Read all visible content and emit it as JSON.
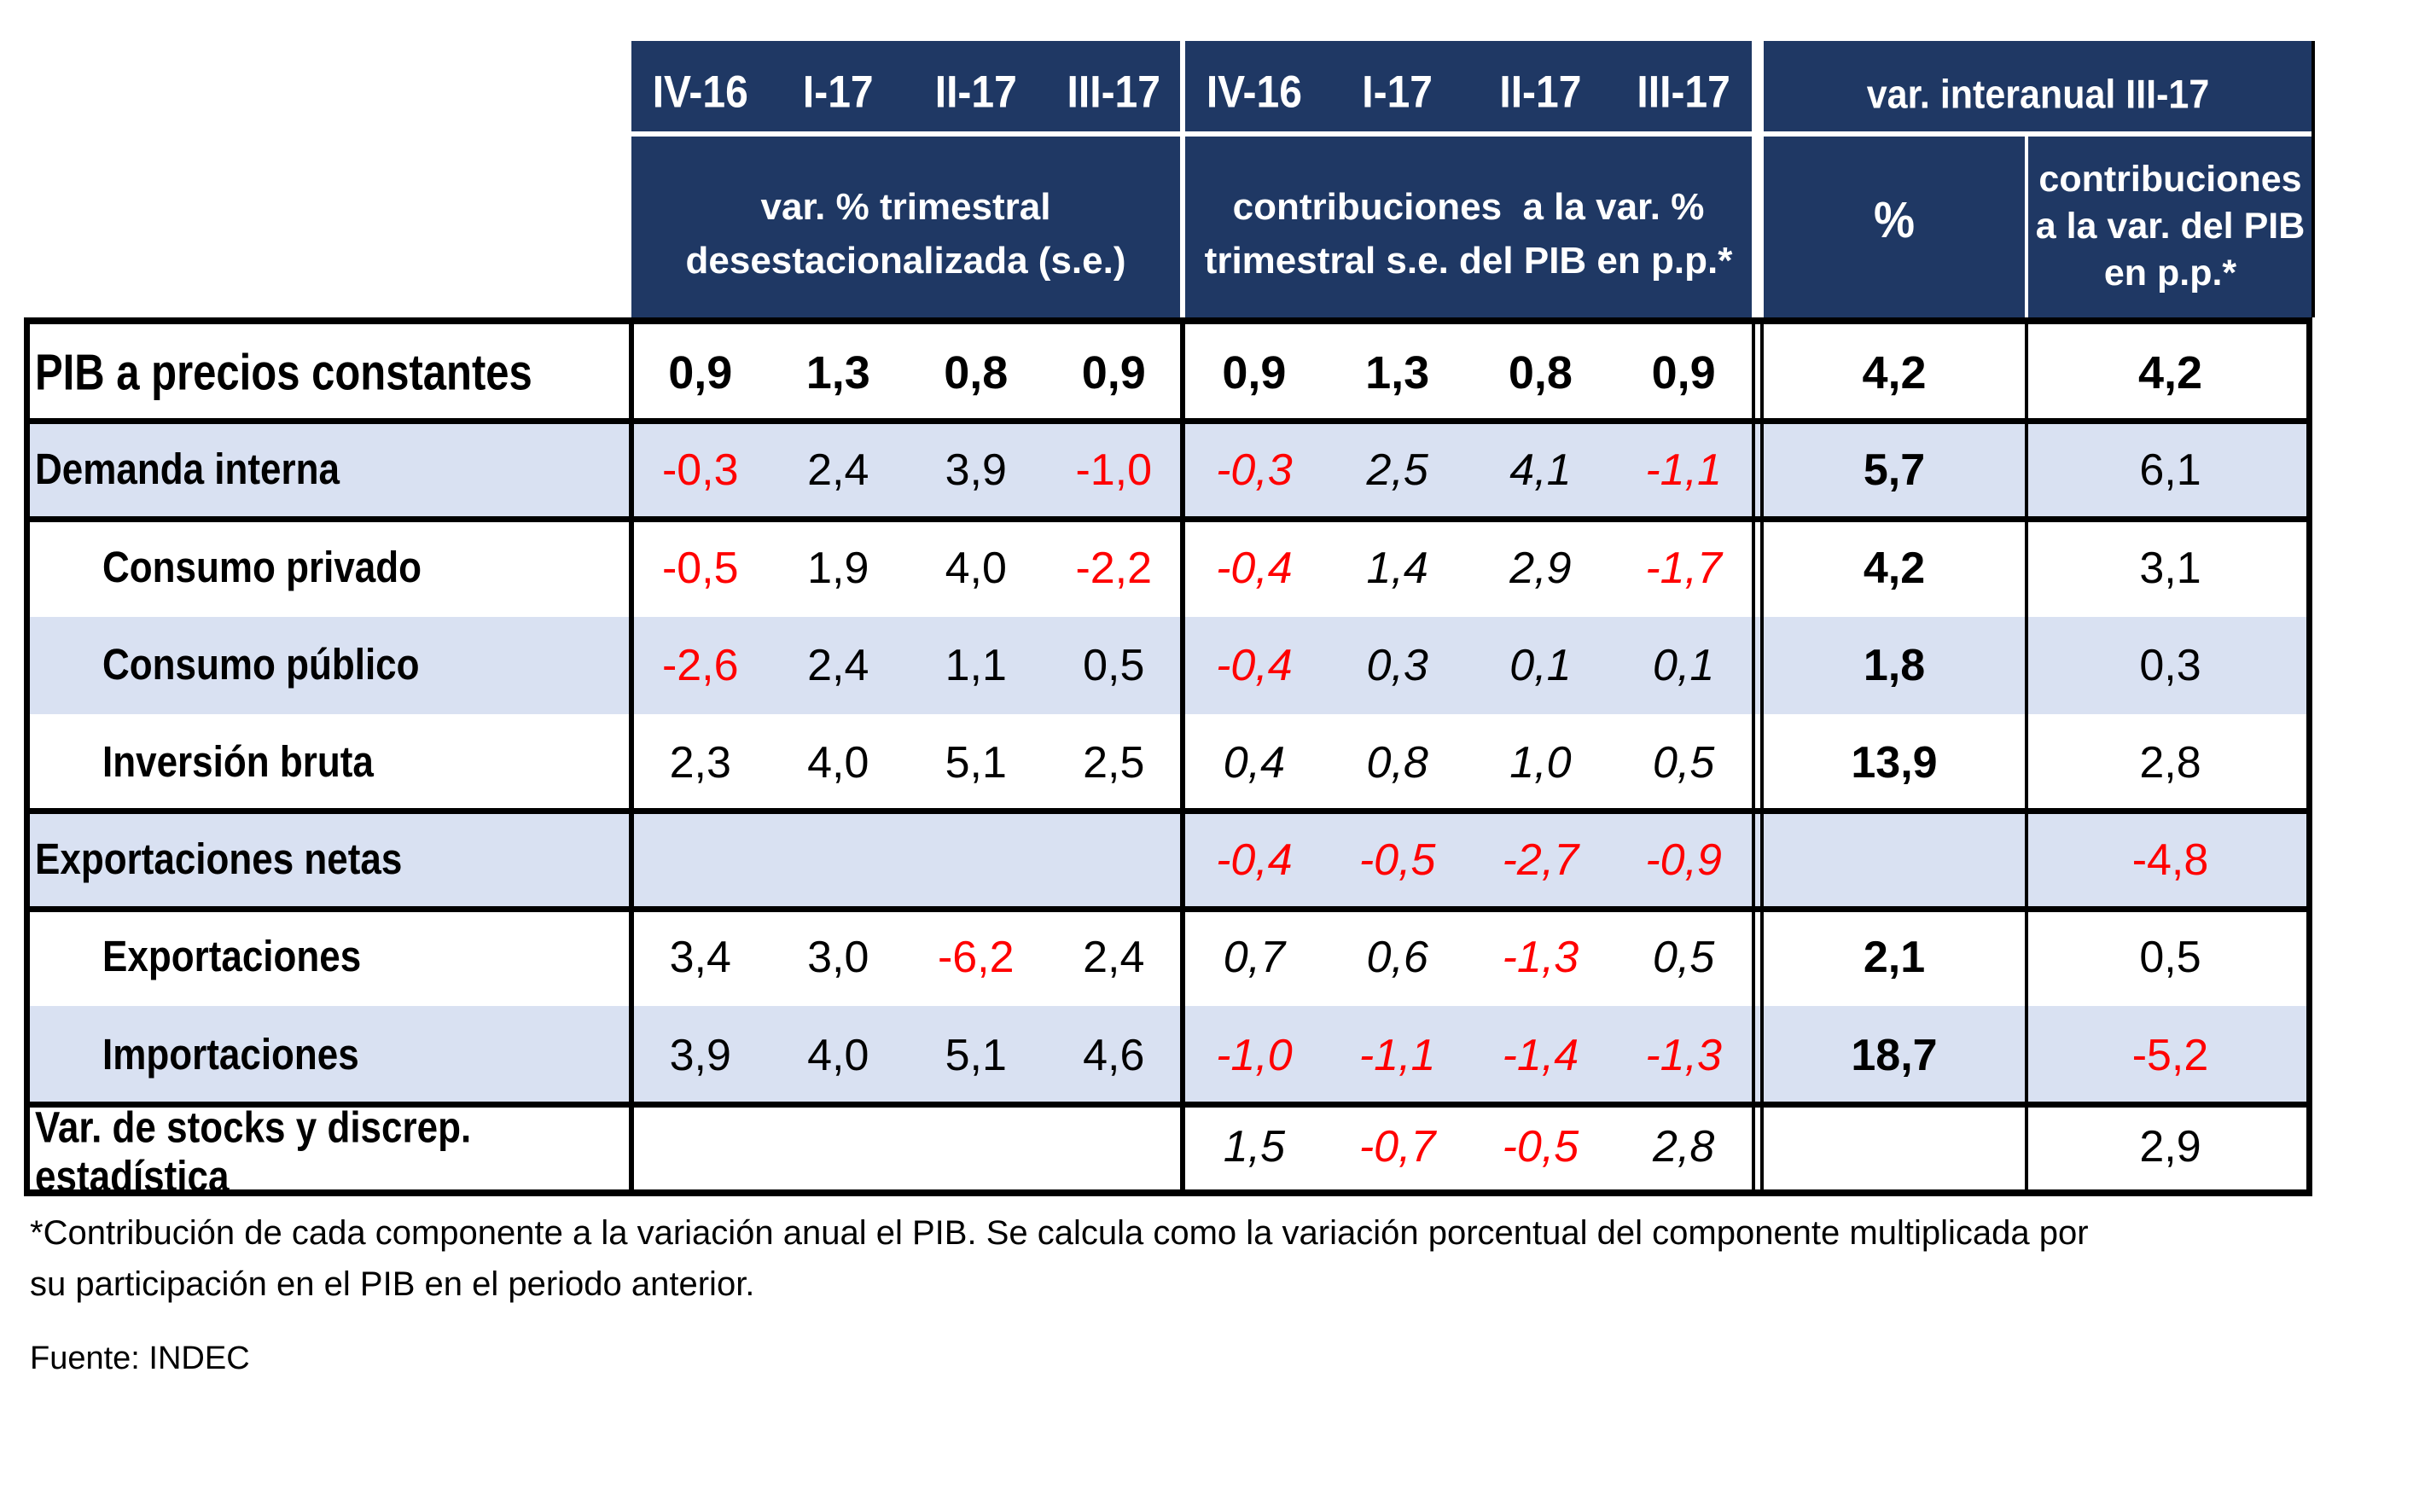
{
  "colors": {
    "header_navy": "#1F3864",
    "stripe_blue": "#D9E1F2",
    "negative_red": "#FF0000",
    "text_black": "#000000",
    "background": "#FFFFFF"
  },
  "header": {
    "quarter_labels": [
      "IV-16",
      "I-17",
      "II-17",
      "III-17"
    ],
    "group1_title_lines": [
      "var. % trimestral",
      "desestacionalizada (s.e.)"
    ],
    "group2_title_lines": [
      "contribuciones  a la var. %",
      "trimestral s.e. del PIB en p.p.*"
    ],
    "group3_title": "var. interanual III-17",
    "group3_pct_label": "%",
    "group3_contrib_lines": [
      "contribuciones",
      "a la var. del PIB",
      "en p.p.*"
    ]
  },
  "rows": [
    {
      "key": "pib",
      "label": "PIB a precios constantes",
      "indent": false,
      "emphasis": true,
      "se": [
        "0,9",
        "1,3",
        "0,8",
        "0,9"
      ],
      "contrib": [
        "0,9",
        "1,3",
        "0,8",
        "0,9"
      ],
      "yoy_pct": "4,2",
      "yoy_contrib": "4,2"
    },
    {
      "key": "demanda-interna",
      "label": "Demanda interna",
      "indent": false,
      "emphasis": false,
      "se": [
        "-0,3",
        "2,4",
        "3,9",
        "-1,0"
      ],
      "contrib": [
        "-0,3",
        "2,5",
        "4,1",
        "-1,1"
      ],
      "yoy_pct": "5,7",
      "yoy_contrib": "6,1"
    },
    {
      "key": "consumo-privado",
      "label": "Consumo privado",
      "indent": true,
      "emphasis": false,
      "se": [
        "-0,5",
        "1,9",
        "4,0",
        "-2,2"
      ],
      "contrib": [
        "-0,4",
        "1,4",
        "2,9",
        "-1,7"
      ],
      "yoy_pct": "4,2",
      "yoy_contrib": "3,1"
    },
    {
      "key": "consumo-publico",
      "label": "Consumo público",
      "indent": true,
      "emphasis": false,
      "se": [
        "-2,6",
        "2,4",
        "1,1",
        "0,5"
      ],
      "contrib": [
        "-0,4",
        "0,3",
        "0,1",
        "0,1"
      ],
      "yoy_pct": "1,8",
      "yoy_contrib": "0,3"
    },
    {
      "key": "inversion-bruta",
      "label": "Inversión bruta",
      "indent": true,
      "emphasis": false,
      "se": [
        "2,3",
        "4,0",
        "5,1",
        "2,5"
      ],
      "contrib": [
        "0,4",
        "0,8",
        "1,0",
        "0,5"
      ],
      "yoy_pct": "13,9",
      "yoy_contrib": "2,8"
    },
    {
      "key": "exportaciones-netas",
      "label": "Exportaciones netas",
      "indent": false,
      "emphasis": false,
      "se": [
        "",
        "",
        "",
        ""
      ],
      "contrib": [
        "-0,4",
        "-0,5",
        "-2,7",
        "-0,9"
      ],
      "yoy_pct": "",
      "yoy_contrib": "-4,8"
    },
    {
      "key": "exportaciones",
      "label": "Exportaciones",
      "indent": true,
      "emphasis": false,
      "se": [
        "3,4",
        "3,0",
        "-6,2",
        "2,4"
      ],
      "contrib": [
        "0,7",
        "0,6",
        "-1,3",
        "0,5"
      ],
      "yoy_pct": "2,1",
      "yoy_contrib": "0,5"
    },
    {
      "key": "importaciones",
      "label": "Importaciones",
      "indent": true,
      "emphasis": false,
      "se": [
        "3,9",
        "4,0",
        "5,1",
        "4,6"
      ],
      "contrib": [
        "-1,0",
        "-1,1",
        "-1,4",
        "-1,3"
      ],
      "yoy_pct": "18,7",
      "yoy_contrib": "-5,2"
    },
    {
      "key": "var-stocks",
      "label": "Var. de stocks y discrep. estadística",
      "label_lines": [
        "Var. de stocks y discrep.",
        "estadística"
      ],
      "indent": false,
      "emphasis": false,
      "se": [
        "",
        "",
        "",
        ""
      ],
      "contrib": [
        "1,5",
        "-0,7",
        "-0,5",
        "2,8"
      ],
      "yoy_pct": "",
      "yoy_contrib": "2,9"
    }
  ],
  "footnote_lines": [
    "*Contribución de cada componente a la variación anual el PIB. Se calcula como la variación porcentual del componente multiplicada por",
    "su participación en el PIB en el periodo anterior."
  ],
  "source_line": "Fuente: INDEC"
}
